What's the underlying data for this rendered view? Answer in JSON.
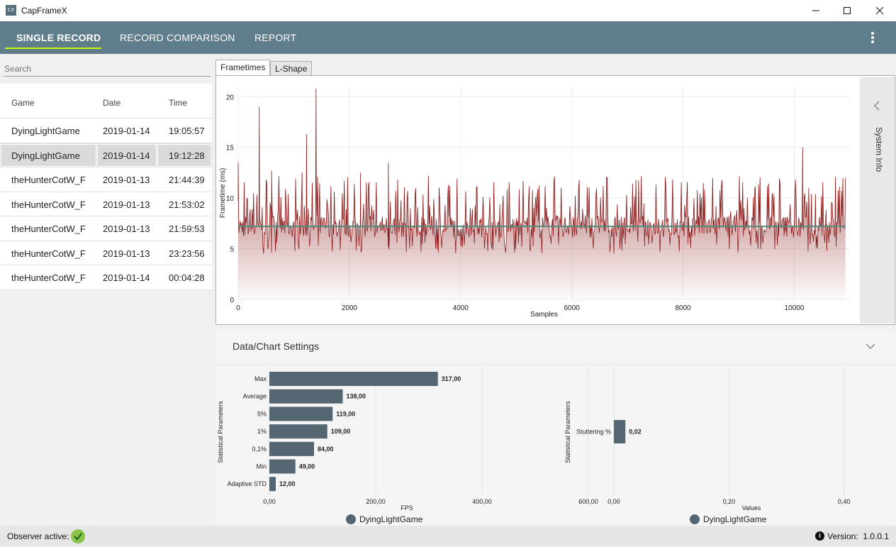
{
  "window": {
    "title": "CapFrameX",
    "icon_text": "CX"
  },
  "nav": {
    "tabs": [
      {
        "label": "SINGLE RECORD",
        "active": true
      },
      {
        "label": "RECORD COMPARISON",
        "active": false
      },
      {
        "label": "REPORT",
        "active": false
      }
    ],
    "accent": "#c6ff00",
    "bar_color": "#607d8b"
  },
  "search": {
    "placeholder": "Search",
    "value": ""
  },
  "records": {
    "columns": [
      "Game",
      "Date",
      "Time"
    ],
    "rows": [
      {
        "game": "DyingLightGame",
        "date": "2019-01-14",
        "time": "19:05:57",
        "selected": false
      },
      {
        "game": "DyingLightGame",
        "date": "2019-01-14",
        "time": "19:12:28",
        "selected": true
      },
      {
        "game": "theHunterCotW_F",
        "date": "2019-01-13",
        "time": "21:44:39",
        "selected": false
      },
      {
        "game": "theHunterCotW_F",
        "date": "2019-01-13",
        "time": "21:53:02",
        "selected": false
      },
      {
        "game": "theHunterCotW_F",
        "date": "2019-01-13",
        "time": "21:59:53",
        "selected": false
      },
      {
        "game": "theHunterCotW_F",
        "date": "2019-01-13",
        "time": "23:23:56",
        "selected": false
      },
      {
        "game": "theHunterCotW_F",
        "date": "2019-01-14",
        "time": "00:04:28",
        "selected": false
      }
    ]
  },
  "chart_tabs": [
    {
      "label": "Frametimes",
      "active": true
    },
    {
      "label": "L-Shape",
      "active": false
    }
  ],
  "system_info_label": "System Info",
  "settings": {
    "title": "Data/Chart Settings"
  },
  "status": {
    "observer_label": "Observer active:",
    "version_label": "Version:",
    "version": "1.0.0.1"
  },
  "chart_data": [
    {
      "type": "line",
      "xlabel": "Samples",
      "ylabel": "Frametime (ms)",
      "xlim": [
        0,
        11000
      ],
      "ylim": [
        0,
        21
      ],
      "x_ticks": [
        0,
        2000,
        4000,
        6000,
        8000,
        10000
      ],
      "y_ticks": [
        0,
        5,
        10,
        15,
        20
      ],
      "series": [
        {
          "color": "#8b1a1a",
          "baseline": 7.2
        }
      ],
      "moving_average_color": "#4f8a7a",
      "spikes": [
        {
          "x": 0,
          "y": 13.5
        },
        {
          "x": 380,
          "y": 19
        },
        {
          "x": 1230,
          "y": 16.3
        },
        {
          "x": 1400,
          "y": 20.8
        },
        {
          "x": 2700,
          "y": 13.5
        },
        {
          "x": 10150,
          "y": 15
        },
        {
          "x": 600,
          "y": 12.7
        },
        {
          "x": 1150,
          "y": 12.5
        },
        {
          "x": 2200,
          "y": 12.5
        }
      ],
      "grid": true
    },
    {
      "type": "bar",
      "orientation": "horizontal",
      "ylabel": "Statistical Parameters",
      "xlabel": "FPS",
      "categories": [
        "Max",
        "Average",
        "5%",
        "1%",
        "0,1%",
        "Min",
        "Adaptive STD"
      ],
      "values": [
        317.0,
        138.0,
        119.0,
        109.0,
        84.0,
        49.0,
        12.0
      ],
      "value_labels": [
        "317,00",
        "138,00",
        "119,00",
        "109,00",
        "84,00",
        "49,00",
        "12,00"
      ],
      "x_ticks": [
        "0,00",
        "200,00",
        "400,00",
        "600,00"
      ],
      "xlim": [
        0,
        620
      ],
      "legend": "DyingLightGame",
      "color": "#546672"
    },
    {
      "type": "bar",
      "orientation": "horizontal",
      "ylabel": "Statistical Parameters",
      "xlabel": "Values",
      "categories": [
        "Stuttering %"
      ],
      "values": [
        0.02
      ],
      "value_labels": [
        "0,02"
      ],
      "x_ticks": [
        "0,00",
        "0,20",
        "0,40"
      ],
      "xlim": [
        0,
        0.42
      ],
      "legend": "DyingLightGame",
      "color": "#546672"
    }
  ]
}
